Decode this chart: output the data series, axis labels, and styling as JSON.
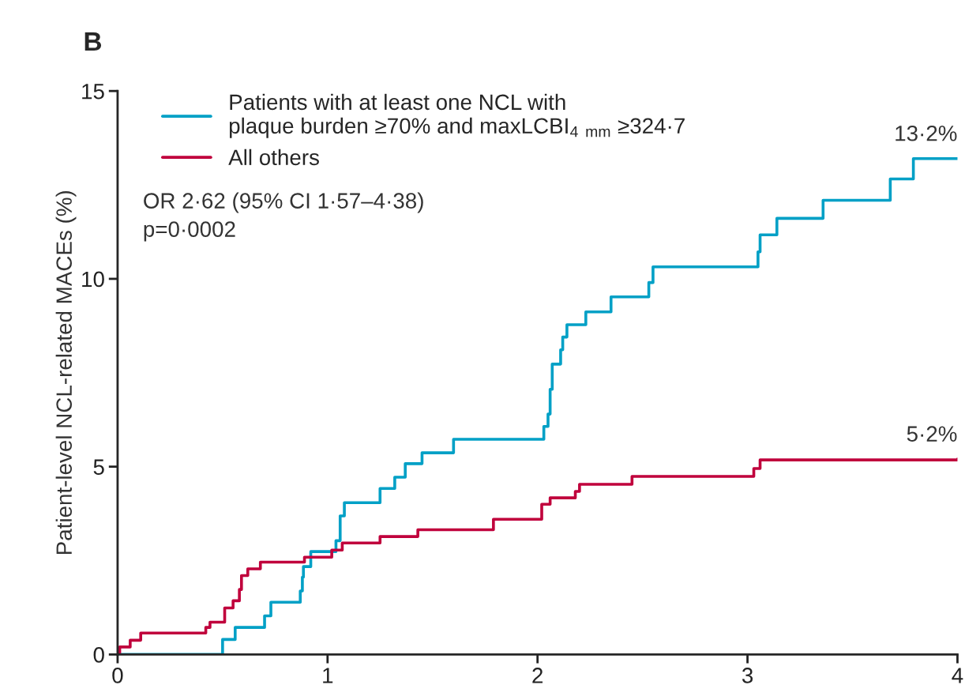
{
  "chart_data": {
    "type": "step",
    "title": "B",
    "ylabel": "Patient-level NCL-related MACEs (%)",
    "xlim": [
      0,
      4
    ],
    "ylim": [
      0,
      15
    ],
    "xticks": [
      0,
      1,
      2,
      3,
      4
    ],
    "yticks": [
      0,
      5,
      10,
      15
    ],
    "grid": false,
    "legend": "top left",
    "series": [
      {
        "name": "Patients with at least one NCL with\nplaque burden ≥70% and maxLCBI$_{4}$ $_{mm}$ ≥324·7",
        "color": "#00a0c6",
        "x": [
          0,
          0.5,
          0.56,
          0.7,
          0.73,
          0.87,
          0.88,
          0.885,
          0.92,
          1.04,
          1.06,
          1.08,
          1.25,
          1.32,
          1.37,
          1.45,
          1.6,
          2.03,
          2.05,
          2.06,
          2.07,
          2.11,
          2.12,
          2.14,
          2.23,
          2.35,
          2.53,
          2.55,
          3.05,
          3.06,
          3.14,
          3.36,
          3.68,
          3.79,
          4.0
        ],
        "values": [
          0,
          0.4,
          0.72,
          1.03,
          1.39,
          1.69,
          2.06,
          2.34,
          2.74,
          3.03,
          3.69,
          4.04,
          4.42,
          4.72,
          5.08,
          5.37,
          5.73,
          6.07,
          6.4,
          7.06,
          7.73,
          8.11,
          8.45,
          8.78,
          9.12,
          9.52,
          9.9,
          10.32,
          10.72,
          11.17,
          11.61,
          12.09,
          12.66,
          13.2,
          13.2
        ]
      },
      {
        "name": "All others",
        "color": "#c0003c",
        "x": [
          0,
          0.01,
          0.06,
          0.11,
          0.42,
          0.44,
          0.51,
          0.55,
          0.58,
          0.59,
          0.62,
          0.68,
          0.89,
          1.02,
          1.07,
          1.25,
          1.43,
          1.79,
          2.02,
          2.06,
          2.18,
          2.2,
          2.45,
          3.03,
          3.06,
          4.0
        ],
        "values": [
          0,
          0.2,
          0.38,
          0.57,
          0.72,
          0.86,
          1.24,
          1.43,
          1.73,
          2.1,
          2.28,
          2.46,
          2.59,
          2.78,
          2.97,
          3.14,
          3.32,
          3.6,
          4.0,
          4.17,
          4.34,
          4.53,
          4.74,
          4.95,
          5.18,
          5.2
        ]
      }
    ],
    "annotations": [
      {
        "text": "13·2%",
        "x": 4,
        "y": 13.2
      },
      {
        "text": "5·2%",
        "x": 4,
        "y": 5.2
      },
      "OR 2·62 (95% CI 1·57–4·38)\np=0·0002"
    ]
  }
}
